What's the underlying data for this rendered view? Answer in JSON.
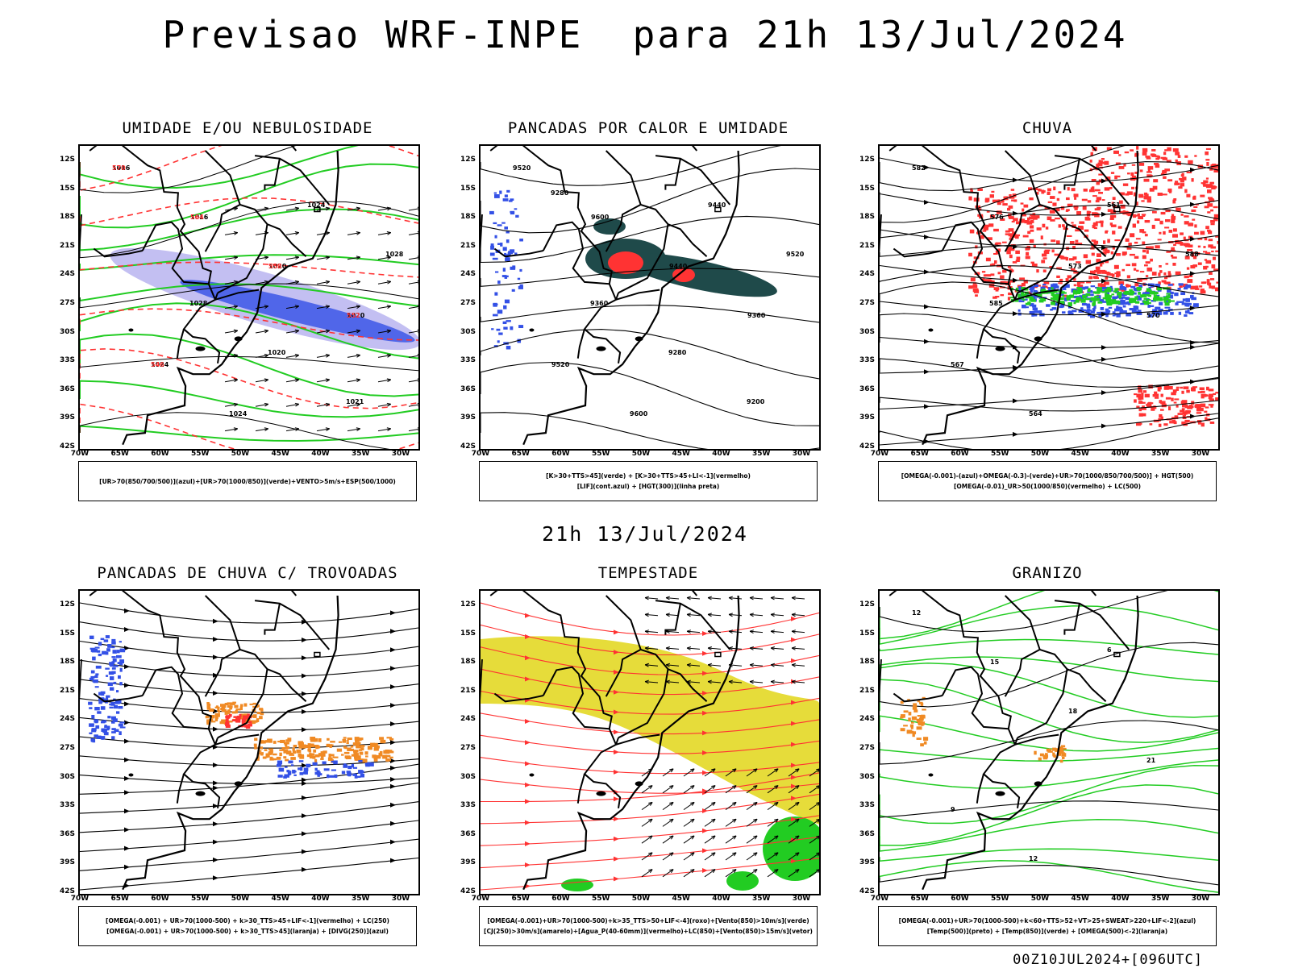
{
  "title": "Previsao WRF-INPE  para 21h 13/Jul/2024",
  "mid_title": "21h 13/Jul/2024",
  "footer": "00Z10JUL2024+[096UTC]",
  "axes": {
    "y_labels": [
      "12S",
      "15S",
      "18S",
      "21S",
      "24S",
      "27S",
      "30S",
      "33S",
      "36S",
      "39S",
      "42S"
    ],
    "x_labels": [
      "70W",
      "65W",
      "60W",
      "55W",
      "50W",
      "45W",
      "40W",
      "35W",
      "30W"
    ]
  },
  "colors": {
    "blue": "#3350e6",
    "light_blue": "#b9b4f0",
    "green": "#22cc22",
    "red": "#ff3333",
    "dark_teal": "#1f4a4a",
    "yellow": "#e6dc3a",
    "orange": "#f08a24",
    "black": "#000000"
  },
  "panels": [
    {
      "title": "UMIDADE E/OU NEBULOSIDADE",
      "legend": [
        "[UR>70(850/700/500)](azul)+[UR>70(1000/850)](verde)+VENTO>5m/s+ESP(500/1000)"
      ],
      "contour_labels": [
        "1016",
        "1016",
        "1020",
        "1020",
        "1024",
        "1024",
        "1024",
        "1028",
        "1028",
        "1020",
        "1021",
        "570",
        "564",
        "558",
        "552",
        "546"
      ]
    },
    {
      "title": "PANCADAS POR CALOR E UMIDADE",
      "legend": [
        "[K>30+TTS>45](verde) + [K>30+TTS>45+LI<-1](vermelho)",
        "[LIF](cont.azul) + [HGT(300)](linha preta)"
      ],
      "contour_labels": [
        "9520",
        "9600",
        "9440",
        "9360",
        "9520",
        "9600",
        "9440",
        "9520",
        "9360",
        "9280",
        "9200",
        "9280"
      ]
    },
    {
      "title": "CHUVA",
      "legend": [
        "[OMEGA(-0.001)-(azul)+OMEGA(-0.3)-(verde)+UR>70(1000/850/700/500)] + HGT(500)",
        "[OMEGA(-0.01)_UR>50(1000/850)(vermelho) + LC(500)"
      ],
      "contour_labels": [
        "582",
        "576",
        "573",
        "570",
        "567",
        "564",
        "561",
        "588",
        "585"
      ]
    },
    {
      "title": "PANCADAS DE CHUVA C/ TROVOADAS",
      "legend": [
        "[OMEGA(-0.001) + UR>70(1000-500) + k>30_TTS>45+LIF<-1](vermelho) + LC(250)",
        "[OMEGA(-0.001) + UR>70(1000-500) + k>30_TTS>45](laranja) + [DIVG(250)](azul)"
      ],
      "contour_labels": []
    },
    {
      "title": "TEMPESTADE",
      "legend": [
        "[OMEGA(-0.001)+UR>70(1000-500)+k>35_TTS>50+LIF<-4](roxo)+[Vento(850)>10m/s](verde)",
        "[CJ(250)>30m/s](amarelo)+[Agua_P(40-60mm)](vermelho)+LC(850)+[Vento(850)>15m/s](vetor)"
      ],
      "contour_labels": []
    },
    {
      "title": "GRANIZO",
      "legend": [
        "[OMEGA(-0.001)+UR>70(1000-500)+k<60+TTS>52+VT>25+SWEAT>220+LIF<-2](azul)",
        "[Temp(500)](preto) + [Temp(850)](verde) + [OMEGA(500)<-2](laranja)"
      ],
      "contour_labels": [
        "12",
        "15",
        "18",
        "21",
        "9",
        "12",
        "6"
      ]
    }
  ]
}
